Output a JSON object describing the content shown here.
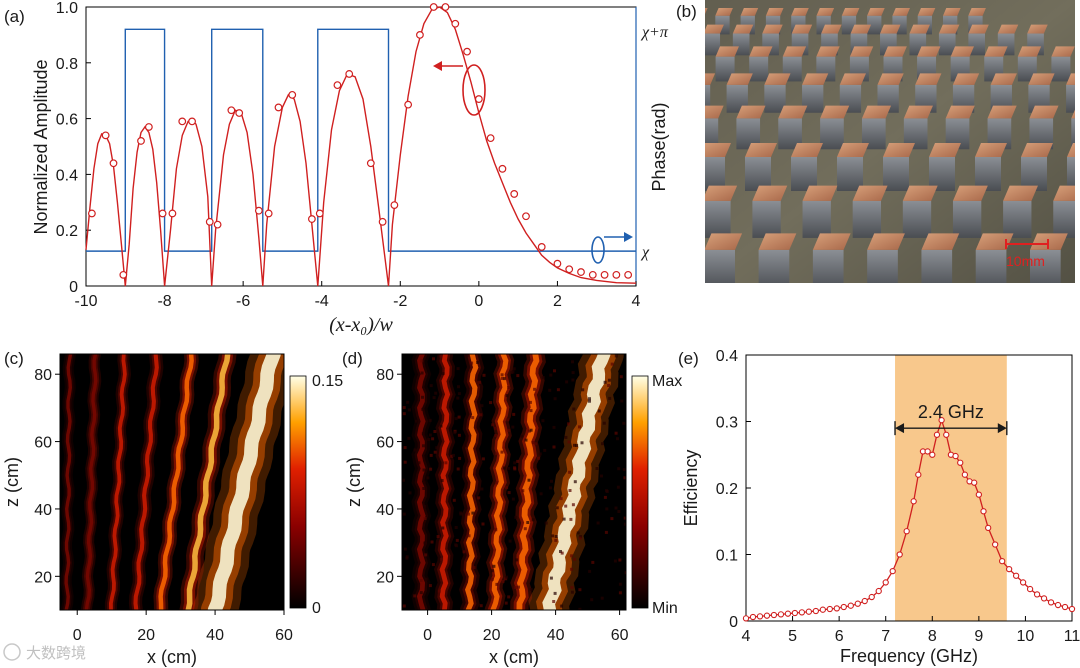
{
  "chart_data": [
    {
      "panel": "(a)",
      "type": "line",
      "xlabel": "(x-x₀)/w",
      "ylabel": "Normalized Amplitude",
      "ylabel_right": "Phase(rad)",
      "xlim": [
        -10,
        4
      ],
      "ylim": [
        0,
        1.0
      ],
      "xticks": [
        "-10",
        "-8",
        "-6",
        "-4",
        "-2",
        "0",
        "2",
        "4"
      ],
      "yticks": [
        "0",
        "0.2",
        "0.4",
        "0.6",
        "0.8",
        "1.0"
      ],
      "right_ticks": [
        "χ+π",
        "χ"
      ],
      "phase_high": 0.92,
      "phase_low": 0.125,
      "phase_segments": [
        [
          -10,
          0
        ],
        [
          -9.0,
          1
        ],
        [
          -8.0,
          0
        ],
        [
          -6.8,
          1
        ],
        [
          -5.5,
          0
        ],
        [
          -4.1,
          1
        ],
        [
          -2.3,
          0
        ],
        [
          4,
          0
        ]
      ],
      "amplitude_curve": [
        [
          -10,
          0.13
        ],
        [
          -9.9,
          0.28
        ],
        [
          -9.8,
          0.42
        ],
        [
          -9.7,
          0.51
        ],
        [
          -9.6,
          0.545
        ],
        [
          -9.5,
          0.54
        ],
        [
          -9.4,
          0.51
        ],
        [
          -9.3,
          0.43
        ],
        [
          -9.2,
          0.3
        ],
        [
          -9.1,
          0.15
        ],
        [
          -9.0,
          0.0
        ],
        [
          -8.9,
          0.15
        ],
        [
          -8.8,
          0.35
        ],
        [
          -8.7,
          0.48
        ],
        [
          -8.6,
          0.55
        ],
        [
          -8.5,
          0.57
        ],
        [
          -8.4,
          0.55
        ],
        [
          -8.3,
          0.49
        ],
        [
          -8.2,
          0.37
        ],
        [
          -8.1,
          0.2
        ],
        [
          -8.0,
          0.0
        ],
        [
          -7.85,
          0.2
        ],
        [
          -7.7,
          0.42
        ],
        [
          -7.55,
          0.54
        ],
        [
          -7.4,
          0.59
        ],
        [
          -7.3,
          0.595
        ],
        [
          -7.2,
          0.58
        ],
        [
          -7.05,
          0.5
        ],
        [
          -6.9,
          0.32
        ],
        [
          -6.8,
          0.0
        ],
        [
          -6.7,
          0.2
        ],
        [
          -6.5,
          0.47
        ],
        [
          -6.35,
          0.58
        ],
        [
          -6.2,
          0.63
        ],
        [
          -6.05,
          0.62
        ],
        [
          -5.9,
          0.55
        ],
        [
          -5.75,
          0.4
        ],
        [
          -5.6,
          0.17
        ],
        [
          -5.5,
          0.0
        ],
        [
          -5.4,
          0.22
        ],
        [
          -5.2,
          0.5
        ],
        [
          -5.0,
          0.64
        ],
        [
          -4.85,
          0.685
        ],
        [
          -4.7,
          0.67
        ],
        [
          -4.55,
          0.59
        ],
        [
          -4.4,
          0.44
        ],
        [
          -4.25,
          0.22
        ],
        [
          -4.1,
          0.0
        ],
        [
          -3.95,
          0.3
        ],
        [
          -3.75,
          0.56
        ],
        [
          -3.55,
          0.7
        ],
        [
          -3.35,
          0.76
        ],
        [
          -3.15,
          0.75
        ],
        [
          -2.95,
          0.67
        ],
        [
          -2.75,
          0.5
        ],
        [
          -2.55,
          0.28
        ],
        [
          -2.3,
          0.0
        ],
        [
          -2.2,
          0.22
        ],
        [
          -2.0,
          0.47
        ],
        [
          -1.8,
          0.68
        ],
        [
          -1.6,
          0.84
        ],
        [
          -1.4,
          0.94
        ],
        [
          -1.2,
          0.99
        ],
        [
          -1.0,
          1.0
        ],
        [
          -0.8,
          0.98
        ],
        [
          -0.6,
          0.92
        ],
        [
          -0.4,
          0.83
        ],
        [
          -0.2,
          0.73
        ],
        [
          0.0,
          0.62
        ],
        [
          0.2,
          0.52
        ],
        [
          0.4,
          0.44
        ],
        [
          0.6,
          0.37
        ],
        [
          0.8,
          0.3
        ],
        [
          1.0,
          0.24
        ],
        [
          1.2,
          0.19
        ],
        [
          1.4,
          0.15
        ],
        [
          1.6,
          0.11
        ],
        [
          1.8,
          0.085
        ],
        [
          2.0,
          0.065
        ],
        [
          2.3,
          0.045
        ],
        [
          2.6,
          0.03
        ],
        [
          3.0,
          0.02
        ],
        [
          3.5,
          0.012
        ],
        [
          4.0,
          0.01
        ]
      ],
      "amplitude_markers": [
        [
          -9.85,
          0.26
        ],
        [
          -9.5,
          0.54
        ],
        [
          -9.3,
          0.44
        ],
        [
          -9.05,
          0.04
        ],
        [
          -8.6,
          0.52
        ],
        [
          -8.4,
          0.57
        ],
        [
          -8.05,
          0.26
        ],
        [
          -7.8,
          0.26
        ],
        [
          -7.55,
          0.59
        ],
        [
          -7.3,
          0.59
        ],
        [
          -6.85,
          0.23
        ],
        [
          -6.65,
          0.22
        ],
        [
          -6.3,
          0.63
        ],
        [
          -6.1,
          0.62
        ],
        [
          -5.6,
          0.27
        ],
        [
          -5.35,
          0.26
        ],
        [
          -5.1,
          0.64
        ],
        [
          -4.75,
          0.685
        ],
        [
          -4.25,
          0.24
        ],
        [
          -4.05,
          0.26
        ],
        [
          -3.6,
          0.72
        ],
        [
          -3.3,
          0.76
        ],
        [
          -2.75,
          0.44
        ],
        [
          -2.45,
          0.23
        ],
        [
          -2.15,
          0.29
        ],
        [
          -1.8,
          0.65
        ],
        [
          -1.5,
          0.9
        ],
        [
          -1.15,
          1.0
        ],
        [
          -0.85,
          1.0
        ],
        [
          -0.6,
          0.94
        ],
        [
          -0.3,
          0.84
        ],
        [
          0.0,
          0.67
        ],
        [
          0.3,
          0.53
        ],
        [
          0.6,
          0.42
        ],
        [
          0.9,
          0.33
        ],
        [
          1.2,
          0.25
        ],
        [
          1.6,
          0.14
        ],
        [
          2.0,
          0.08
        ],
        [
          2.3,
          0.06
        ],
        [
          2.6,
          0.05
        ],
        [
          2.9,
          0.04
        ],
        [
          3.2,
          0.04
        ],
        [
          3.5,
          0.04
        ],
        [
          3.8,
          0.04
        ]
      ]
    },
    {
      "panel": "(b)",
      "type": "image",
      "scale_bar": "10mm"
    },
    {
      "panel": "(c)",
      "type": "heatmap",
      "xlabel": "x (cm)",
      "ylabel": "z (cm)",
      "xlim": [
        -5,
        60
      ],
      "ylim": [
        10,
        86
      ],
      "xticks": [
        "0",
        "20",
        "40",
        "60"
      ],
      "yticks": [
        "20",
        "40",
        "60",
        "80"
      ],
      "colorbar_labels": [
        "0.15",
        "0"
      ],
      "beams": [
        {
          "x0": 40,
          "slope": 0.22,
          "width": 4.0,
          "intensity": 1.0
        },
        {
          "x0": 32,
          "slope": 0.15,
          "width": 1.6,
          "intensity": 0.7
        },
        {
          "x0": 24,
          "slope": 0.12,
          "width": 1.3,
          "intensity": 0.55
        },
        {
          "x0": 17,
          "slope": 0.08,
          "width": 1.2,
          "intensity": 0.45
        },
        {
          "x0": 10,
          "slope": 0.05,
          "width": 1.1,
          "intensity": 0.38
        },
        {
          "x0": 3,
          "slope": 0.03,
          "width": 1.0,
          "intensity": 0.28
        },
        {
          "x0": -3,
          "slope": 0.01,
          "width": 1.0,
          "intensity": 0.18
        }
      ]
    },
    {
      "panel": "(d)",
      "type": "heatmap",
      "xlabel": "x (cm)",
      "ylabel": "z (cm)",
      "xlim": [
        -8,
        62
      ],
      "ylim": [
        10,
        86
      ],
      "xticks": [
        "0",
        "20",
        "40",
        "60"
      ],
      "yticks": [
        "20",
        "40",
        "60",
        "80"
      ],
      "colorbar_labels": [
        "Max",
        "Min"
      ],
      "beams": [
        {
          "x0": 38,
          "slope": 0.22,
          "width": 3.8,
          "intensity": 1.0
        },
        {
          "x0": 29,
          "slope": 0.06,
          "width": 1.8,
          "intensity": 0.6
        },
        {
          "x0": 21,
          "slope": 0.04,
          "width": 1.6,
          "intensity": 0.55
        },
        {
          "x0": 13,
          "slope": 0.02,
          "width": 1.6,
          "intensity": 0.5
        },
        {
          "x0": 5,
          "slope": 0.01,
          "width": 1.5,
          "intensity": 0.35
        },
        {
          "x0": -2,
          "slope": 0.0,
          "width": 1.5,
          "intensity": 0.25
        }
      ]
    },
    {
      "panel": "(e)",
      "type": "line",
      "xlabel": "Frequency (GHz)",
      "ylabel": "Efficiency",
      "xlim": [
        4,
        11
      ],
      "ylim": [
        0,
        0.4
      ],
      "xticks": [
        "4",
        "5",
        "6",
        "7",
        "8",
        "9",
        "10",
        "11"
      ],
      "yticks": [
        "0",
        "0.1",
        "0.2",
        "0.3",
        "0.4"
      ],
      "band": [
        7.2,
        9.6
      ],
      "band_label": "2.4 GHz",
      "x": [
        4.0,
        4.15,
        4.3,
        4.45,
        4.6,
        4.75,
        4.9,
        5.05,
        5.2,
        5.35,
        5.5,
        5.65,
        5.8,
        5.95,
        6.1,
        6.25,
        6.4,
        6.55,
        6.7,
        6.85,
        7.0,
        7.15,
        7.3,
        7.45,
        7.6,
        7.7,
        7.8,
        7.9,
        8.0,
        8.1,
        8.2,
        8.3,
        8.4,
        8.5,
        8.6,
        8.7,
        8.8,
        8.9,
        9.0,
        9.1,
        9.2,
        9.35,
        9.5,
        9.65,
        9.8,
        9.95,
        10.1,
        10.25,
        10.4,
        10.55,
        10.7,
        10.85,
        11.0
      ],
      "y": [
        0.004,
        0.006,
        0.007,
        0.008,
        0.009,
        0.01,
        0.011,
        0.012,
        0.013,
        0.014,
        0.015,
        0.017,
        0.018,
        0.019,
        0.021,
        0.023,
        0.026,
        0.03,
        0.036,
        0.045,
        0.058,
        0.075,
        0.1,
        0.135,
        0.18,
        0.22,
        0.255,
        0.255,
        0.25,
        0.28,
        0.302,
        0.28,
        0.25,
        0.248,
        0.238,
        0.22,
        0.21,
        0.208,
        0.19,
        0.165,
        0.14,
        0.115,
        0.09,
        0.078,
        0.068,
        0.058,
        0.048,
        0.04,
        0.034,
        0.028,
        0.024,
        0.021,
        0.018
      ]
    }
  ],
  "watermark": "大数跨境"
}
